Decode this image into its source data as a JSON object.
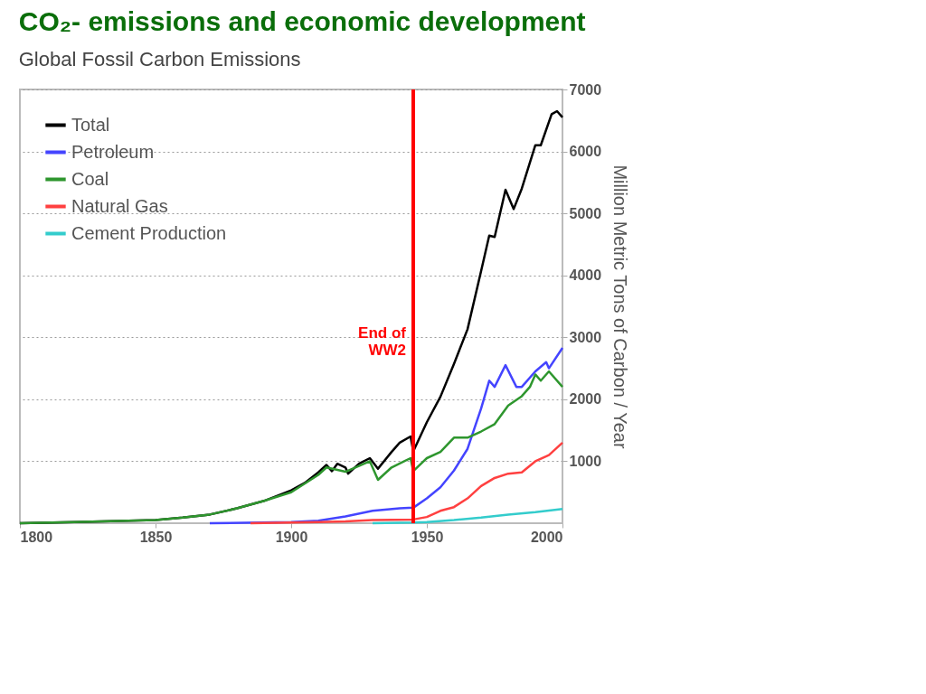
{
  "chart_data": {
    "type": "line",
    "title": "CO₂- emissions and economic development",
    "subtitle": "Global Fossil Carbon Emissions",
    "ylabel": "Million Metric Tons of Carbon / Year",
    "xlim": [
      1800,
      2000
    ],
    "xticks": [
      1800,
      1850,
      1900,
      1950,
      2000
    ],
    "ylim": [
      0,
      7000
    ],
    "yticks": [
      1000,
      2000,
      3000,
      4000,
      5000,
      6000,
      7000
    ],
    "grid": "y",
    "legend": "top left",
    "line_style": "solid",
    "ref_lines": [
      {
        "axis": "x",
        "value": 1945,
        "label": "End of\nWW2",
        "color": "#ff0000"
      }
    ],
    "series": [
      {
        "name": "Total",
        "color": "#000000",
        "x": [
          1800,
          1820,
          1840,
          1850,
          1860,
          1870,
          1880,
          1890,
          1900,
          1905,
          1910,
          1913,
          1915,
          1917,
          1920,
          1921,
          1925,
          1929,
          1932,
          1937,
          1940,
          1944,
          1945,
          1950,
          1955,
          1960,
          1965,
          1970,
          1973,
          1975,
          1979,
          1982,
          1985,
          1990,
          1992,
          1996,
          1998,
          2000
        ],
        "values": [
          0,
          20,
          40,
          50,
          90,
          140,
          240,
          360,
          530,
          650,
          820,
          940,
          840,
          960,
          900,
          800,
          960,
          1050,
          880,
          1150,
          1300,
          1400,
          1160,
          1630,
          2040,
          2570,
          3130,
          4070,
          4640,
          4620,
          5380,
          5070,
          5400,
          6100,
          6100,
          6600,
          6650,
          6550
        ]
      },
      {
        "name": "Petroleum",
        "color": "#4444ff",
        "x": [
          1870,
          1900,
          1910,
          1920,
          1930,
          1940,
          1945,
          1950,
          1955,
          1960,
          1965,
          1970,
          1973,
          1975,
          1979,
          1983,
          1985,
          1990,
          1994,
          1995,
          2000
        ],
        "values": [
          0,
          20,
          40,
          110,
          200,
          240,
          250,
          400,
          580,
          850,
          1200,
          1850,
          2300,
          2200,
          2550,
          2200,
          2200,
          2450,
          2600,
          2500,
          2830
        ]
      },
      {
        "name": "Coal",
        "color": "#2e962e",
        "x": [
          1800,
          1820,
          1840,
          1850,
          1860,
          1870,
          1880,
          1890,
          1900,
          1910,
          1913,
          1920,
          1929,
          1932,
          1937,
          1944,
          1945,
          1950,
          1955,
          1960,
          1965,
          1970,
          1975,
          1980,
          1985,
          1988,
          1990,
          1992,
          1995,
          2000
        ],
        "values": [
          0,
          20,
          40,
          50,
          90,
          140,
          240,
          360,
          500,
          780,
          900,
          830,
          1000,
          700,
          900,
          1050,
          840,
          1050,
          1150,
          1380,
          1380,
          1480,
          1600,
          1900,
          2050,
          2200,
          2400,
          2300,
          2450,
          2200
        ]
      },
      {
        "name": "Natural Gas",
        "color": "#ff4040",
        "x": [
          1885,
          1910,
          1920,
          1930,
          1945,
          1950,
          1955,
          1960,
          1965,
          1970,
          1975,
          1980,
          1985,
          1990,
          1995,
          2000
        ],
        "values": [
          0,
          20,
          30,
          50,
          60,
          100,
          200,
          260,
          400,
          600,
          730,
          800,
          820,
          1000,
          1100,
          1300
        ]
      },
      {
        "name": "Cement Production",
        "color": "#33cccc",
        "x": [
          1930,
          1945,
          1950,
          1960,
          1970,
          1980,
          1990,
          2000
        ],
        "values": [
          0,
          10,
          20,
          50,
          90,
          140,
          180,
          230
        ]
      }
    ]
  }
}
